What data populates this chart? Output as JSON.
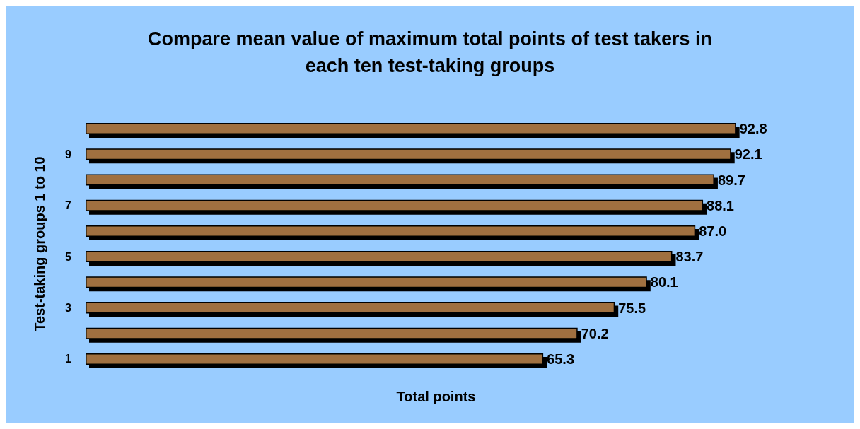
{
  "chart_data": {
    "type": "bar",
    "orientation": "horizontal",
    "title": "Compare mean value of maximum total points of test takers in\neach ten test-taking groups",
    "xlabel": "Total points",
    "ylabel": "Test-taking groups 1 to 10",
    "categories": [
      null,
      "9",
      null,
      "7",
      null,
      "5",
      null,
      "3",
      null,
      "1"
    ],
    "values": [
      92.8,
      92.1,
      89.7,
      88.1,
      87.0,
      83.7,
      80.1,
      75.5,
      70.2,
      65.3
    ],
    "value_labels": [
      "92.8",
      "92.1",
      "89.7",
      "88.1",
      "87.0",
      "83.7",
      "80.1",
      "75.5",
      "70.2",
      "65.3"
    ],
    "color": "#a0703f",
    "grid": false
  }
}
